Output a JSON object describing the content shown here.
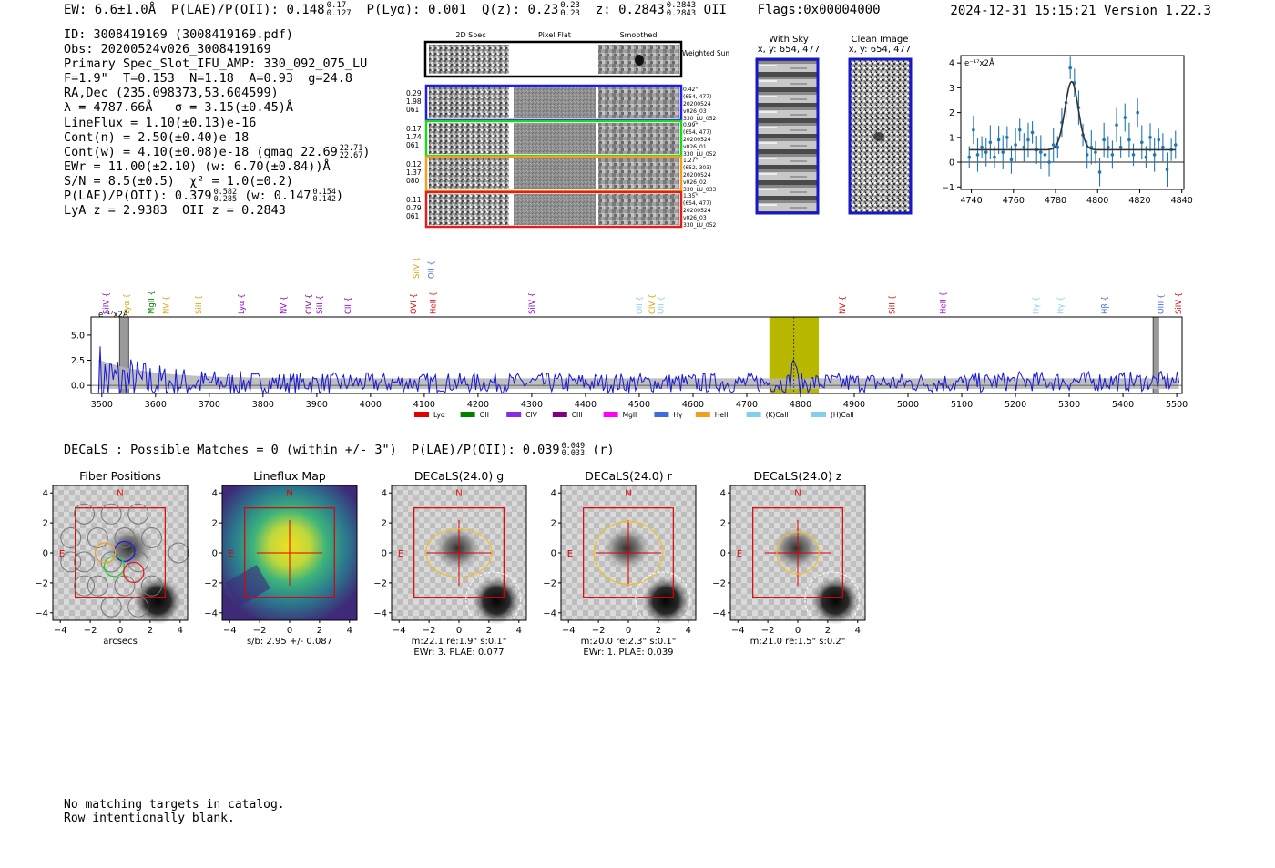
{
  "header": {
    "ew": "EW: 6.6±1.0Å",
    "plae": "P(LAE)/P(OII): 0.148",
    "plae_hi": "0.17",
    "plae_lo": "0.127",
    "plya": "P(Lyα): 0.001",
    "qz": "Q(z): 0.23",
    "qz_hi": "0.23",
    "qz_lo": "0.23",
    "z": "z: 0.2843",
    "z_hi": "0.2843",
    "z_lo": "0.2843",
    "line": "OII",
    "flags": "Flags:0x00004000",
    "timestamp": "2024-12-31 15:15:21",
    "version": "Version 1.22.3"
  },
  "info": {
    "id": "ID: 3008419169 (3008419169.pdf)",
    "obs": "Obs: 20200524v026_3008419169",
    "primary": "Primary Spec_Slot_IFU_AMP: 330_092_075_LU",
    "fit": "F=1.9\"  T=0.153  N=1.18  A=0.93  g=24.8",
    "radec": "RA,Dec (235.098373,53.604599)",
    "lambda_sigma": "λ = 4787.66Å   σ = 3.15(±0.45)Å",
    "lineflux": "LineFlux = 1.10(±0.13)e-16",
    "cont_n": "Cont(n) = 2.50(±0.40)e-18",
    "cont_w": "Cont(w) = 4.10(±0.08)e-18 (gmag 22.69",
    "gmag_hi": "22.71",
    "gmag_lo": "22.67",
    "ewr": "EWr = 11.00(±2.10) (w: 6.70(±0.84))Å",
    "sn_chi": "S/N = 8.5(±0.5)  χ² = 1.0(±0.2)",
    "plae2": "P(LAE)/P(OII): 0.379",
    "plae2_hi": "0.582",
    "plae2_lo": "0.285",
    "plae2_w": "(w: 0.147",
    "plae2_w_hi": "0.154",
    "plae2_w_lo": "0.142",
    "redshifts": "LyA z = 2.9383  OII z = 0.2843"
  },
  "cutouts": {
    "col_2d": "2D Spec",
    "col_flat": "Pixel Flat",
    "col_smooth": "Smoothed",
    "weighted_sum": "Weighted Sum",
    "rows": [
      {
        "left": [
          "0.29",
          "1.98",
          "061"
        ],
        "right": [
          "0.42\"",
          "(654, 477)",
          "20200524",
          "v026_03",
          "330_LU_052"
        ],
        "color": "#1e1ee6"
      },
      {
        "left": [
          "0.17",
          "1.74",
          "061"
        ],
        "right": [
          "0.99\"",
          "(654, 477)",
          "20200524",
          "v026_01",
          "330_LU_052"
        ],
        "color": "#22d322"
      },
      {
        "left": [
          "0.12",
          "1.37",
          "080"
        ],
        "right": [
          "1.27\"",
          "(652, 303)",
          "20200524",
          "v026_02",
          "330_LU_033"
        ],
        "color": "#f0a020"
      },
      {
        "left": [
          "0.11",
          "0.79",
          "061"
        ],
        "right": [
          "1.35\"",
          "(654, 477)",
          "20200524",
          "v026_03",
          "330_LU_052"
        ],
        "color": "#e01e1e"
      }
    ]
  },
  "sky": {
    "with_sky": "With Sky",
    "with_sky_xy": "x, y: 654, 477",
    "clean": "Clean Image",
    "clean_xy": "x, y: 654, 477"
  },
  "colors": {
    "spectrum": "#1414e0",
    "error_band": "#b4b4b4",
    "highlight": "#b8b800",
    "fit_points": "#1f77b4",
    "box_red": "#e00000",
    "ellipse": "#f0c020"
  },
  "chart_data": [
    {
      "id": "line-fit",
      "type": "scatter",
      "title": "",
      "unit_label": "e⁻¹⁷x2Å",
      "xlabel": "",
      "ylabel": "",
      "xlim": [
        4735,
        4841
      ],
      "ylim": [
        -1.1,
        4.3
      ],
      "xticks": [
        4740,
        4760,
        4780,
        4800,
        4820,
        4840
      ],
      "yticks": [
        -1,
        0,
        1,
        2,
        3,
        4
      ],
      "x": [
        4739,
        4741,
        4743,
        4745,
        4747,
        4749,
        4751,
        4753,
        4755,
        4757,
        4759,
        4761,
        4763,
        4765,
        4767,
        4769,
        4771,
        4773,
        4775,
        4777,
        4779,
        4781,
        4783,
        4785,
        4787,
        4789,
        4791,
        4793,
        4795,
        4797,
        4799,
        4801,
        4803,
        4805,
        4807,
        4809,
        4811,
        4813,
        4815,
        4817,
        4819,
        4821,
        4823,
        4825,
        4827,
        4829,
        4831,
        4833,
        4835,
        4837
      ],
      "values": [
        0.2,
        1.3,
        0.3,
        0.6,
        0.4,
        0.8,
        0.2,
        0.9,
        0.4,
        1.0,
        0.1,
        0.7,
        1.3,
        0.6,
        0.9,
        1.2,
        0.5,
        0.4,
        0.3,
        0.0,
        0.7,
        0.6,
        1.6,
        2.4,
        3.8,
        3.2,
        2.2,
        1.1,
        0.3,
        0.6,
        0.4,
        -0.4,
        0.9,
        0.6,
        0.3,
        1.5,
        0.6,
        1.8,
        0.9,
        0.3,
        2.0,
        0.8,
        0.2,
        1.0,
        0.3,
        0.9,
        0.6,
        -0.3,
        0.5,
        0.7
      ],
      "fit": {
        "continuum": 0.5,
        "amplitude": 2.75,
        "center": 4787.66,
        "sigma": 3.15
      },
      "zero_line": 0
    },
    {
      "id": "full-spectrum",
      "type": "line",
      "title": "",
      "unit_label": "e⁻¹⁷x2Å",
      "xlabel": "",
      "ylabel": "",
      "xlim": [
        3480,
        5510
      ],
      "ylim": [
        -0.8,
        6.8
      ],
      "xticks": [
        3500,
        3600,
        3700,
        3800,
        3900,
        4000,
        4100,
        4200,
        4300,
        4400,
        4500,
        4600,
        4700,
        4800,
        4900,
        5000,
        5100,
        5200,
        5300,
        5400,
        5500
      ],
      "yticks": [
        0.0,
        2.5,
        5.0
      ],
      "ytick_labels": [
        "0.0",
        "2.5",
        "5.0"
      ],
      "highlight_range": [
        4742,
        4834
      ],
      "line_center": 4787.66,
      "masked_ranges": [
        [
          3533,
          3550
        ],
        [
          5456,
          5466
        ]
      ],
      "emission_lines": [
        {
          "label": "SiIV",
          "wave": 3508,
          "color": "#9400d3"
        },
        {
          "label": "Lyα",
          "wave": 3546,
          "color": "#e0a000"
        },
        {
          "label": "MgII",
          "wave": 3592,
          "color": "#008000"
        },
        {
          "label": "NV",
          "wave": 3620,
          "color": "#e0a000"
        },
        {
          "label": "SiII",
          "wave": 3680,
          "color": "#e0a000"
        },
        {
          "label": "Lyα",
          "wave": 3760,
          "color": "#9400d3"
        },
        {
          "label": "NV",
          "wave": 3838,
          "color": "#9400d3"
        },
        {
          "label": "CIV",
          "wave": 3885,
          "color": "#800080"
        },
        {
          "label": "SiII",
          "wave": 3905,
          "color": "#9400d3"
        },
        {
          "label": "CII",
          "wave": 3958,
          "color": "#9400d3"
        },
        {
          "label": "OVI",
          "wave": 4080,
          "color": "#e00000"
        },
        {
          "label": "HeII",
          "wave": 4116,
          "color": "#e00000"
        },
        {
          "label": "SiIV",
          "wave": 4300,
          "color": "#9400d3"
        },
        {
          "label": "OII",
          "wave": 4500,
          "color": "#87ceeb"
        },
        {
          "label": "CIV",
          "wave": 4524,
          "color": "#e0a000"
        },
        {
          "label": "OII",
          "wave": 4540,
          "color": "#87ceeb"
        },
        {
          "label": "NV",
          "wave": 4878,
          "color": "#e00000"
        },
        {
          "label": "SiII",
          "wave": 4970,
          "color": "#e00000"
        },
        {
          "label": "HeII",
          "wave": 5065,
          "color": "#9400d3"
        },
        {
          "label": "Hγ",
          "wave": 5238,
          "color": "#87ceeb"
        },
        {
          "label": "Hγ",
          "wave": 5284,
          "color": "#87ceeb"
        },
        {
          "label": "Hβ",
          "wave": 5366,
          "color": "#4169e1"
        },
        {
          "label": "OIII",
          "wave": 5470,
          "color": "#4169e1"
        },
        {
          "label": "SiIV",
          "wave": 5503,
          "color": "#e00000"
        }
      ],
      "upper_lines": [
        {
          "label": "SiIV",
          "wave": 4085,
          "color": "#e0a000"
        },
        {
          "label": "OII",
          "wave": 4113,
          "color": "#4169e1"
        }
      ],
      "legend": [
        {
          "label": "Lyα",
          "color": "#e00000"
        },
        {
          "label": "OII",
          "color": "#008000"
        },
        {
          "label": "CIV",
          "color": "#8a2be2"
        },
        {
          "label": "CIII",
          "color": "#800080"
        },
        {
          "label": "MgII",
          "color": "#ff00ff"
        },
        {
          "label": "Hγ",
          "color": "#4169e1"
        },
        {
          "label": "HeII",
          "color": "#f0a020"
        },
        {
          "label": "(K)CaII",
          "color": "#87ceeb"
        },
        {
          "label": "(H)CaII",
          "color": "#87ceeb"
        }
      ],
      "legend_position": "bottom-center"
    },
    {
      "id": "imaging-panels",
      "type": "heatmap",
      "xlim": [
        -4.5,
        4.5
      ],
      "ylim": [
        -4.5,
        4.5
      ],
      "xticks": [
        -4,
        -2,
        0,
        2,
        4
      ],
      "yticks": [
        -4,
        -2,
        0,
        2,
        4
      ],
      "xtick_labels": [
        "−4",
        "−2",
        "0",
        "2",
        "4"
      ],
      "ytick_labels": [
        "−4",
        "−2",
        "0",
        "2",
        "4"
      ],
      "panels": [
        {
          "title": "Fiber Positions",
          "caption1": "arcsecs",
          "caption2": "",
          "kind": "fibers"
        },
        {
          "title": "Lineflux Map",
          "caption1": "s/b: 2.95 +/- 0.087",
          "caption2": "",
          "kind": "lineflux"
        },
        {
          "title": "DECaLS(24.0) g",
          "caption1": "m:22.1  re:1.9\"  s:0.1\"",
          "caption2": "EWr: 3. PLAE: 0.077",
          "kind": "decals",
          "ellipse_a": 2.2,
          "ellipse_b": 1.6
        },
        {
          "title": "DECaLS(24.0) r",
          "caption1": "m:20.0  re:2.3\"  s:0.1\"",
          "caption2": "EWr: 1. PLAE: 0.039",
          "kind": "decals",
          "ellipse_a": 2.3,
          "ellipse_b": 2.1
        },
        {
          "title": "DECaLS(24.0) z",
          "caption1": "m:21.0  re:1.5\"  s:0.2\"",
          "caption2": "",
          "kind": "decals",
          "ellipse_a": 1.4,
          "ellipse_b": 1.4
        }
      ],
      "north_label": "N",
      "east_label": "E"
    }
  ],
  "decals": {
    "text": "DECaLS : Possible Matches = 0 (within +/- 3\")  P(LAE)/P(OII): 0.039",
    "hi": "0.049",
    "lo": "0.033",
    "band": "(r)"
  },
  "footer": {
    "line1": "No matching targets in catalog.",
    "line2": "Row intentionally blank."
  }
}
